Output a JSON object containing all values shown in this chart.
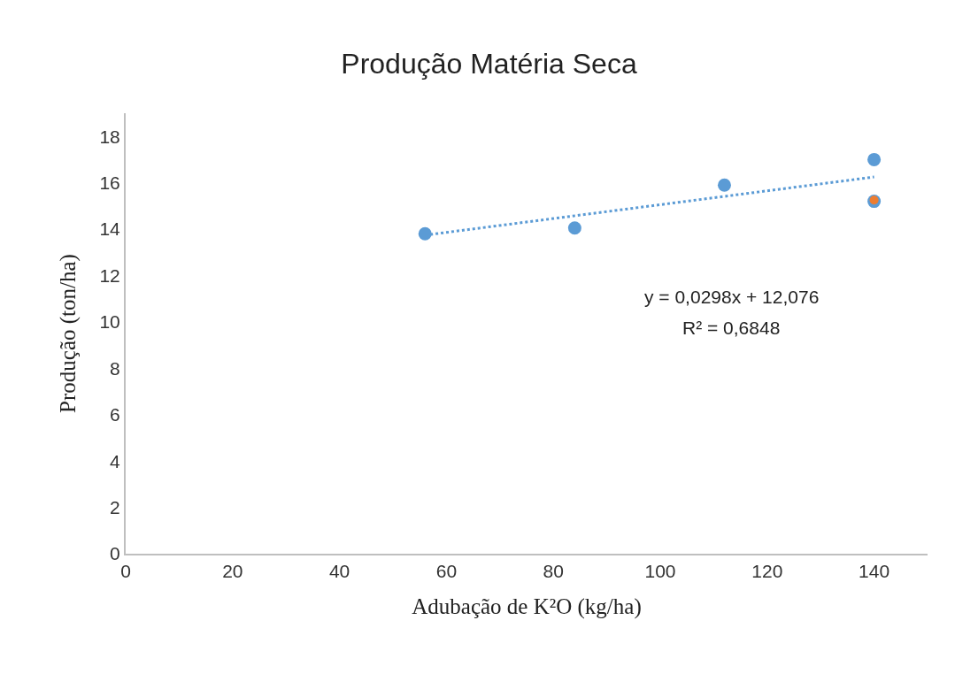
{
  "chart_data": {
    "type": "scatter",
    "title": "Produção Matéria Seca",
    "xlabel": "Adubação de K²O (kg/ha)",
    "ylabel": "Produção (ton/ha)",
    "xlim": [
      0,
      150
    ],
    "xticks": [
      0,
      20,
      40,
      60,
      80,
      100,
      120,
      140
    ],
    "ylim": [
      0,
      19
    ],
    "yticks": [
      0,
      2,
      4,
      6,
      8,
      10,
      12,
      14,
      16,
      18
    ],
    "grid": false,
    "marker": "circle",
    "series": [
      {
        "type": "scatter",
        "color": "#5b9bd5",
        "x": [
          56,
          84,
          112,
          140,
          140
        ],
        "values": [
          13.8,
          14.05,
          15.9,
          17.0,
          15.2
        ]
      },
      {
        "type": "scatter",
        "color": "#ed7d31",
        "x": [
          140
        ],
        "values": [
          15.25
        ]
      },
      {
        "type": "line",
        "color": "#5b9bd5",
        "line_style": "dotted",
        "marker": "none",
        "x": [
          56,
          140
        ],
        "values": [
          13.74,
          16.25
        ]
      }
    ],
    "annotations": [
      "y = 0,0298x + 12,076",
      "R² = 0,6848"
    ]
  }
}
